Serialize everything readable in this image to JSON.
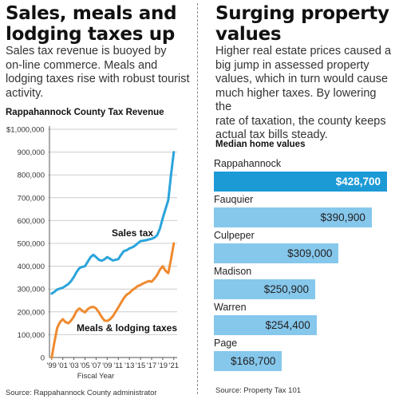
{
  "left": {
    "headline_line1": "Sales, meals and",
    "headline_line2": "lodging taxes up",
    "deck_line1": "Sales tax revenue is buoyed by",
    "deck_line2": "on-line commerce. Meals and",
    "deck_line3": "lodging taxes rise with robust tourist",
    "deck_line4": "activity.",
    "source": "Source: Rappahannock County administrator"
  },
  "right": {
    "headline_line1": "Surging property",
    "headline_line2": "values",
    "deck_line1": "Higher real estate prices caused a",
    "deck_line2": "big jump in assessed property",
    "deck_line3": "values, which in turn would cause",
    "deck_line4": "much higher taxes. By lowering the",
    "deck_line5": "rate of taxation, the county keeps",
    "deck_line6": "actual tax bills steady.",
    "source": "Source: Property Tax 101"
  },
  "colors": {
    "sales": "#2aa4db",
    "meals": "#ef8a2e",
    "bar": "#86c7ec",
    "bar_highlight": "#1c9ad6",
    "grid": "#cccccc"
  },
  "chart_data": [
    {
      "type": "line",
      "title": "Rappahannock County Tax Revenue",
      "xlabel": "Fiscal Year",
      "ylabel": "",
      "ylim": [
        0,
        1000000
      ],
      "y_ticks": [
        0,
        100000,
        200000,
        300000,
        400000,
        500000,
        600000,
        700000,
        800000,
        900000,
        1000000
      ],
      "y_tick_labels": [
        "0",
        "100,000",
        "200,000",
        "300,000",
        "400,000",
        "500,000",
        "600,000",
        "700,000",
        "800,000",
        "900,000",
        "$1,000,000"
      ],
      "x_tick_labels": [
        "'99",
        "'01",
        "'03",
        "'05",
        "'07",
        "'09",
        "'11",
        "'13",
        "'15",
        "'17",
        "'19",
        "'21"
      ],
      "x": [
        1999.0,
        1999.5,
        2000.0,
        2000.5,
        2001.0,
        2001.5,
        2002.0,
        2002.5,
        2003.0,
        2003.5,
        2004.0,
        2004.5,
        2005.0,
        2005.5,
        2006.0,
        2006.5,
        2007.0,
        2007.5,
        2008.0,
        2008.5,
        2009.0,
        2009.5,
        2010.0,
        2010.5,
        2011.0,
        2011.5,
        2012.0,
        2012.5,
        2013.0,
        2013.5,
        2014.0,
        2014.5,
        2015.0,
        2015.5,
        2016.0,
        2016.5,
        2017.0,
        2017.5,
        2018.0,
        2018.5,
        2019.0,
        2019.5,
        2020.0,
        2020.5,
        2021.0
      ],
      "grid": true,
      "series": [
        {
          "name": "Sales tax",
          "values": [
            280000,
            288000,
            298000,
            302000,
            306000,
            314000,
            322000,
            335000,
            353000,
            375000,
            392000,
            397000,
            400000,
            420000,
            440000,
            450000,
            440000,
            428000,
            424000,
            430000,
            440000,
            433000,
            425000,
            428000,
            431000,
            450000,
            466000,
            470000,
            478000,
            483000,
            490000,
            500000,
            510000,
            512000,
            514000,
            517000,
            520000,
            525000,
            536000,
            565000,
            610000,
            650000,
            690000,
            800000,
            900000
          ]
        },
        {
          "name": "Meals & lodging taxes",
          "values": [
            0,
            70000,
            130000,
            155000,
            168000,
            155000,
            150000,
            162000,
            180000,
            205000,
            215000,
            205000,
            198000,
            212000,
            220000,
            222000,
            215000,
            198000,
            178000,
            162000,
            160000,
            167000,
            180000,
            200000,
            220000,
            240000,
            260000,
            275000,
            283000,
            295000,
            303000,
            313000,
            318000,
            325000,
            330000,
            335000,
            332000,
            345000,
            362000,
            385000,
            400000,
            380000,
            370000,
            430000,
            500000
          ]
        }
      ]
    },
    {
      "type": "bar",
      "title": "Median home values",
      "categories": [
        "Rappahannock",
        "Fauquier",
        "Culpeper",
        "Madison",
        "Warren",
        "Page"
      ],
      "values": [
        428700,
        390900,
        309000,
        250900,
        254400,
        168700
      ],
      "value_labels": [
        "$428,700",
        "$390,900",
        "$309,000",
        "$250,900",
        "$254,400",
        "$168,700"
      ],
      "xlim": [
        0,
        428700
      ]
    }
  ]
}
